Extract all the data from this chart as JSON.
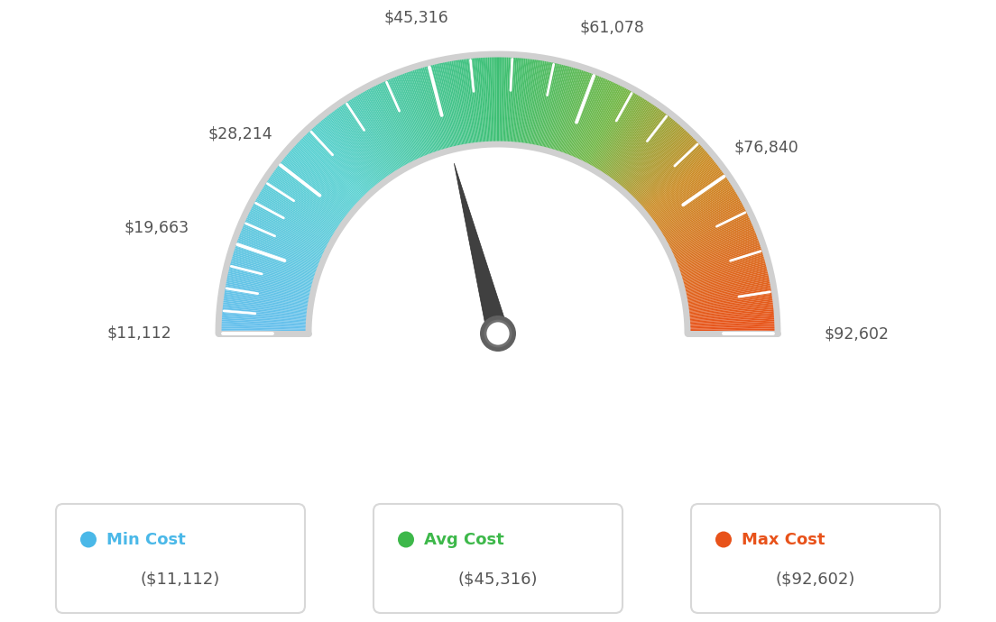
{
  "min_val": 11112,
  "avg_val": 45316,
  "max_val": 92602,
  "tick_labels": [
    "$11,112",
    "$19,663",
    "$28,214",
    "$45,316",
    "$61,078",
    "$76,840",
    "$92,602"
  ],
  "tick_values": [
    11112,
    19663,
    28214,
    45316,
    61078,
    76840,
    92602
  ],
  "legend_items": [
    {
      "label": "Min Cost",
      "value": "($11,112)",
      "color": "#4ab8e8"
    },
    {
      "label": "Avg Cost",
      "value": "($45,316)",
      "color": "#3db84a"
    },
    {
      "label": "Max Cost",
      "value": "($92,602)",
      "color": "#e8521a"
    }
  ],
  "needle_value": 45316,
  "bg_color": "#ffffff",
  "colors_stops": [
    [
      0.0,
      [
        0.4,
        0.75,
        0.93
      ]
    ],
    [
      0.25,
      [
        0.35,
        0.82,
        0.82
      ]
    ],
    [
      0.5,
      [
        0.24,
        0.75,
        0.45
      ]
    ],
    [
      0.65,
      [
        0.45,
        0.72,
        0.28
      ]
    ],
    [
      0.78,
      [
        0.8,
        0.55,
        0.15
      ]
    ],
    [
      1.0,
      [
        0.91,
        0.32,
        0.1
      ]
    ]
  ]
}
